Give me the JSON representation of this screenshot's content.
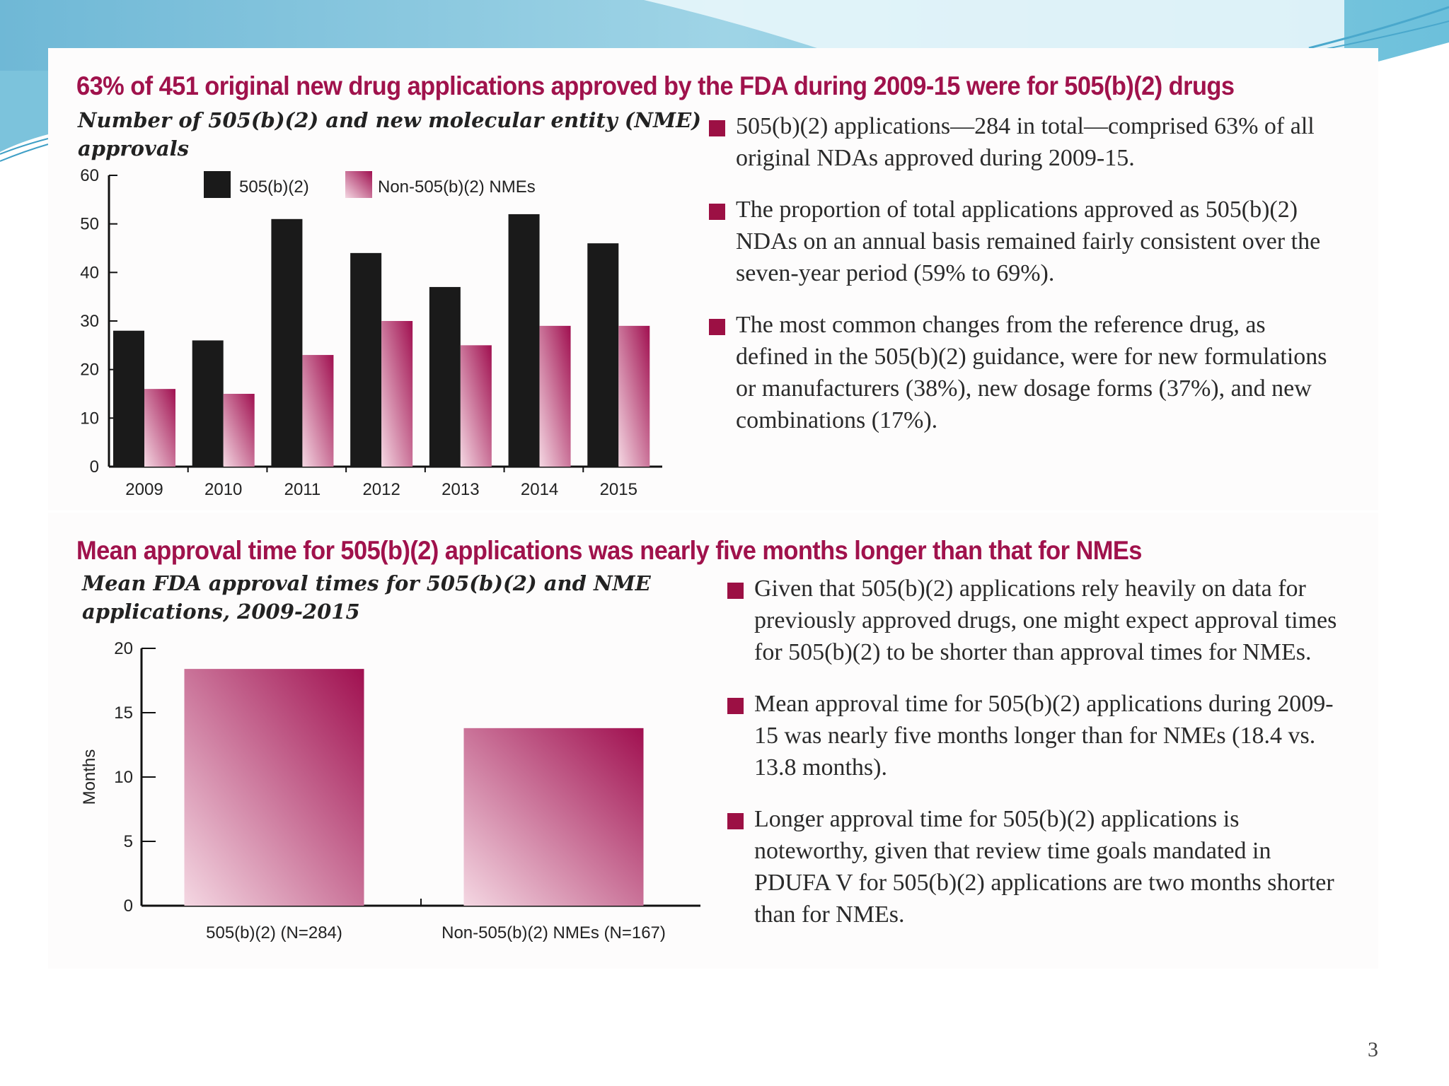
{
  "colors": {
    "title": "#a0124c",
    "bar_505": "#1a1a1a",
    "bar_nme_dark": "#a01050",
    "bar_nme_light": "#f4d7e2",
    "bullet": "#9c1044"
  },
  "top": {
    "headline": "63% of 451 original new drug applications approved by the FDA during 2009-15 were for 505(b)(2) drugs",
    "subtitle_line1": "Number of 505(b)(2) and new molecular entity (NME)",
    "subtitle_line2": "approvals",
    "bullets": [
      "505(b)(2) applications—284 in total—comprised 63% of all original NDAs approved during 2009-15.",
      "The proportion of total applications approved as 505(b)(2) NDAs on an annual basis remained fairly consistent over the seven-year period (59% to 69%).",
      "The most common changes from the reference drug, as defined in the 505(b)(2) guidance, were for new formulations or manufacturers (38%), new dosage forms (37%), and new combinations (17%)."
    ]
  },
  "bottom": {
    "headline": "Mean approval time for 505(b)(2) applications was nearly five months longer than that for NMEs",
    "subtitle_line1": "Mean FDA approval times for 505(b)(2) and NME",
    "subtitle_line2": "applications, 2009-2015",
    "bullets": [
      "Given that 505(b)(2) applications rely heavily on data for previously approved drugs, one might expect approval times for 505(b)(2) to be shorter than approval times for NMEs.",
      "Mean approval time for 505(b)(2) applications during 2009-15 was nearly five months longer than for NMEs (18.4 vs. 13.8 months).",
      "Longer approval time for 505(b)(2) applications is noteworthy, given that review time goals mandated in PDUFA V for 505(b)(2) applications are two months shorter than for NMEs."
    ]
  },
  "chart_data": [
    {
      "type": "bar",
      "title": "Number of 505(b)(2) and new molecular entity (NME) approvals",
      "categories": [
        "2009",
        "2010",
        "2011",
        "2012",
        "2013",
        "2014",
        "2015"
      ],
      "series": [
        {
          "name": "505(b)(2)",
          "values": [
            28,
            26,
            51,
            44,
            37,
            52,
            46
          ]
        },
        {
          "name": "Non-505(b)(2) NMEs",
          "values": [
            16,
            15,
            23,
            30,
            25,
            29,
            29
          ]
        }
      ],
      "xlabel": "",
      "ylabel": "",
      "ylim": [
        0,
        60
      ],
      "yticks": [
        0,
        10,
        20,
        30,
        40,
        50,
        60
      ],
      "legend": "top"
    },
    {
      "type": "bar",
      "title": "Mean FDA approval times for 505(b)(2) and NME applications, 2009-2015",
      "categories": [
        "505(b)(2) (N=284)",
        "Non-505(b)(2) NMEs (N=167)"
      ],
      "values": [
        18.4,
        13.8
      ],
      "xlabel": "",
      "ylabel": "Months",
      "ylim": [
        0,
        20
      ],
      "yticks": [
        0,
        5,
        10,
        15,
        20
      ]
    }
  ],
  "page_number": "3"
}
